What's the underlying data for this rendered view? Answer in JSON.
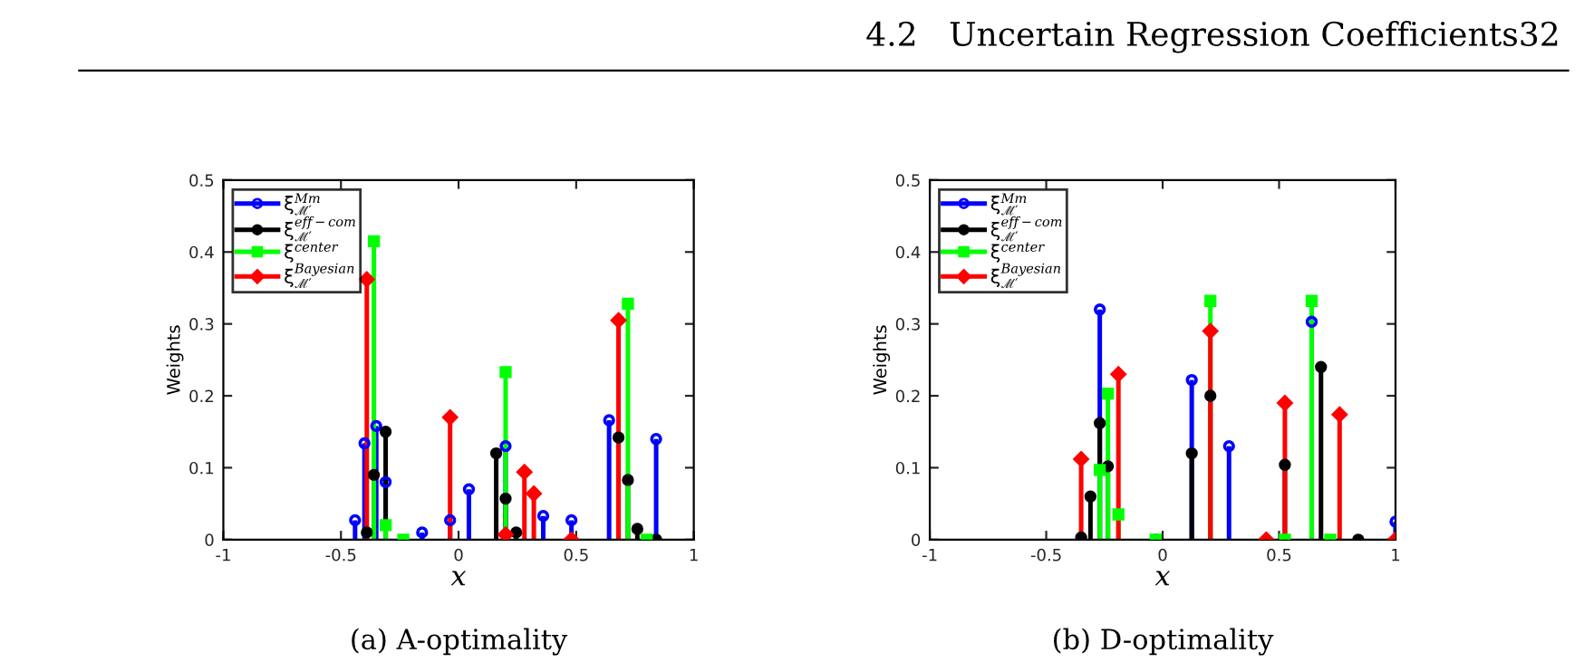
{
  "chart_data": [
    {
      "type": "lollipop",
      "xlabel": "x",
      "ylabel": "Weights",
      "xlim": [
        -1,
        1
      ],
      "ylim": [
        0,
        0.5
      ],
      "xticks": [
        -1,
        -0.5,
        0,
        0.5,
        1
      ],
      "yticks": [
        0,
        0.1,
        0.2,
        0.3,
        0.4,
        0.5
      ],
      "legend": "top left",
      "grid": false,
      "annotations": [
        "4.2   Uncertain Regression Coefficients32",
        "(a) A-optimality"
      ],
      "series": [
        {
          "name": "ξ$^{Mm}$$_{ℳ′}$",
          "color": "#0000ff",
          "marker": "circle",
          "x": [
            -0.44,
            -0.4,
            -0.35,
            -0.31,
            -0.155,
            -0.036,
            0.044,
            0.2,
            0.36,
            0.48,
            0.64,
            0.84
          ],
          "values": [
            0.027,
            0.134,
            0.158,
            0.08,
            0.01,
            0.027,
            0.07,
            0.13,
            0.033,
            0.027,
            0.166,
            0.14
          ]
        },
        {
          "name": "ξ$^{eff−com}$$_{ℳ′}$",
          "color": "#000000",
          "marker": "circle",
          "x": [
            -0.39,
            -0.36,
            -0.31,
            0.16,
            0.2,
            0.245,
            0.68,
            0.72,
            0.76,
            0.84
          ],
          "values": [
            0.01,
            0.09,
            0.15,
            0.12,
            0.057,
            0.01,
            0.142,
            0.083,
            0.015,
            0
          ]
        },
        {
          "name": "ξ$^{center}$",
          "color": "#00ff00",
          "marker": "square",
          "x": [
            -0.36,
            -0.31,
            -0.235,
            0.2,
            0.72,
            0.8
          ],
          "values": [
            0.415,
            0.02,
            0,
            0.233,
            0.328,
            0
          ]
        },
        {
          "name": "ξ$^{Bayesian}$$_{ℳ′}$",
          "color": "#ff0000",
          "marker": "diamond",
          "x": [
            -0.39,
            -0.036,
            0.2,
            0.28,
            0.32,
            0.48,
            0.68
          ],
          "values": [
            0.362,
            0.17,
            0.007,
            0.094,
            0.064,
            0,
            0.305
          ]
        }
      ]
    },
    {
      "type": "lollipop",
      "xlabel": "x",
      "ylabel": "Weights",
      "xlim": [
        -1,
        1
      ],
      "ylim": [
        0,
        0.5
      ],
      "xticks": [
        -1,
        -0.5,
        0,
        0.5,
        1
      ],
      "yticks": [
        0,
        0.1,
        0.2,
        0.3,
        0.4,
        0.5
      ],
      "legend": "top left",
      "grid": false,
      "annotations": [
        "(b) D-optimality"
      ],
      "series": [
        {
          "name": "ξ$^{Mm}$$_{ℳ′}$",
          "color": "#0000ff",
          "marker": "circle",
          "x": [
            -0.27,
            -0.03,
            0.125,
            0.285,
            0.64,
            1.0
          ],
          "values": [
            0.32,
            0,
            0.222,
            0.13,
            0.303,
            0.025
          ]
        },
        {
          "name": "ξ$^{eff−com}$$_{ℳ′}$",
          "color": "#000000",
          "marker": "circle",
          "x": [
            -0.35,
            -0.31,
            -0.27,
            -0.235,
            0.125,
            0.205,
            0.525,
            0.68,
            0.84
          ],
          "values": [
            0.003,
            0.06,
            0.162,
            0.102,
            0.12,
            0.2,
            0.104,
            0.24,
            0
          ]
        },
        {
          "name": "ξ$^{center}$",
          "color": "#00ff00",
          "marker": "square",
          "x": [
            -0.27,
            -0.235,
            -0.19,
            -0.03,
            0.205,
            0.525,
            0.64,
            0.72
          ],
          "values": [
            0.097,
            0.203,
            0.035,
            0,
            0.332,
            0,
            0.332,
            0
          ]
        },
        {
          "name": "ξ$^{Bayesian}$$_{ℳ′}$",
          "color": "#ff0000",
          "marker": "diamond",
          "x": [
            -0.35,
            -0.19,
            0.205,
            0.445,
            0.525,
            0.76,
            1.0
          ],
          "values": [
            0.112,
            0.23,
            0.29,
            0,
            0.19,
            0.174,
            0
          ]
        }
      ]
    }
  ]
}
